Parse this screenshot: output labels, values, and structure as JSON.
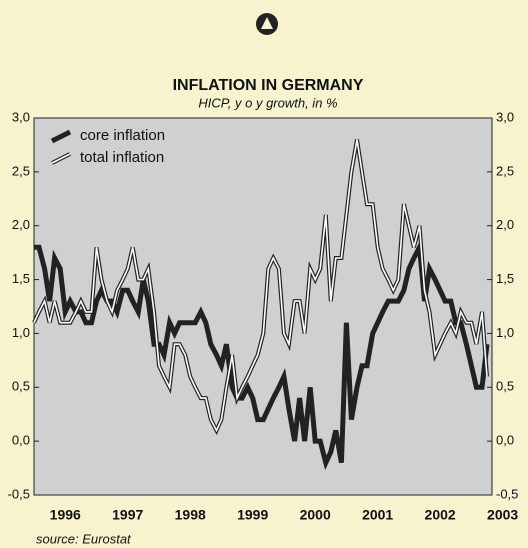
{
  "chart_data": {
    "type": "line",
    "title": "INFLATION IN GERMANY",
    "subtitle": "HICP, y o y growth, in %",
    "source": "source: Eurostat",
    "x": [
      1996.0,
      1996.08,
      1996.17,
      1996.25,
      1996.33,
      1996.42,
      1996.5,
      1996.58,
      1996.67,
      1996.75,
      1996.83,
      1996.92,
      1997.0,
      1997.08,
      1997.17,
      1997.25,
      1997.33,
      1997.42,
      1997.5,
      1997.58,
      1997.67,
      1997.75,
      1997.83,
      1997.92,
      1998.0,
      1998.08,
      1998.17,
      1998.25,
      1998.33,
      1998.42,
      1998.5,
      1998.58,
      1998.67,
      1998.75,
      1998.83,
      1998.92,
      1999.0,
      1999.08,
      1999.17,
      1999.25,
      1999.33,
      1999.42,
      1999.5,
      1999.58,
      1999.67,
      1999.75,
      1999.83,
      1999.92,
      2000.0,
      2000.08,
      2000.17,
      2000.25,
      2000.33,
      2000.42,
      2000.5,
      2000.58,
      2000.67,
      2000.75,
      2000.83,
      2000.92,
      2001.0,
      2001.08,
      2001.17,
      2001.25,
      2001.33,
      2001.42,
      2001.5,
      2001.58,
      2001.67,
      2001.75,
      2001.83,
      2001.92,
      2002.0,
      2002.08,
      2002.17,
      2002.25,
      2002.33,
      2002.42,
      2002.5,
      2002.58,
      2002.67,
      2002.75,
      2002.83,
      2002.92,
      2003.0,
      2003.08,
      2003.17,
      2003.25
    ],
    "series": [
      {
        "name": "core inflation",
        "color": "#222222",
        "style": "thick",
        "values": [
          1.8,
          1.8,
          1.6,
          1.3,
          1.7,
          1.6,
          1.2,
          1.3,
          1.2,
          1.2,
          1.1,
          1.1,
          1.3,
          1.4,
          1.3,
          1.3,
          1.2,
          1.4,
          1.4,
          1.3,
          1.2,
          1.5,
          1.3,
          0.9,
          0.9,
          0.8,
          1.1,
          1.0,
          1.1,
          1.1,
          1.1,
          1.1,
          1.2,
          1.1,
          0.9,
          0.8,
          0.7,
          0.9,
          0.5,
          0.4,
          0.4,
          0.5,
          0.4,
          0.2,
          0.2,
          0.3,
          0.4,
          0.5,
          0.6,
          0.3,
          0.0,
          0.4,
          0.0,
          0.5,
          0.0,
          0.0,
          -0.2,
          -0.1,
          0.1,
          -0.2,
          1.1,
          0.2,
          0.5,
          0.7,
          0.7,
          1.0,
          1.1,
          1.2,
          1.3,
          1.3,
          1.3,
          1.4,
          1.6,
          1.7,
          1.8,
          1.3,
          1.6,
          1.5,
          1.4,
          1.3,
          1.3,
          1.1,
          1.1,
          0.9,
          0.7,
          0.5,
          0.5,
          0.9
        ]
      },
      {
        "name": "total inflation",
        "color": "#222222",
        "style": "double",
        "values": [
          1.1,
          1.2,
          1.3,
          1.1,
          1.3,
          1.1,
          1.1,
          1.1,
          1.2,
          1.3,
          1.2,
          1.2,
          1.8,
          1.5,
          1.3,
          1.2,
          1.4,
          1.5,
          1.6,
          1.8,
          1.5,
          1.5,
          1.6,
          1.2,
          0.7,
          0.6,
          0.5,
          0.9,
          0.9,
          0.8,
          0.6,
          0.5,
          0.4,
          0.4,
          0.2,
          0.1,
          0.2,
          0.5,
          0.8,
          0.4,
          0.5,
          0.6,
          0.7,
          0.8,
          1.0,
          1.6,
          1.7,
          1.6,
          1.0,
          0.9,
          1.3,
          1.3,
          1.0,
          1.6,
          1.5,
          1.6,
          2.1,
          1.3,
          1.7,
          1.7,
          2.1,
          2.5,
          2.8,
          2.5,
          2.2,
          2.2,
          1.8,
          1.6,
          1.5,
          1.4,
          1.5,
          2.2,
          2.0,
          1.8,
          2.0,
          1.4,
          1.2,
          0.8,
          0.9,
          1.0,
          1.1,
          1.0,
          1.2,
          1.1,
          1.1,
          0.9,
          1.2,
          0.6
        ]
      }
    ],
    "xlim": [
      1996,
      2003.33
    ],
    "xticks": [
      {
        "value": 1996.5,
        "label": "1996"
      },
      {
        "value": 1997.5,
        "label": "1997"
      },
      {
        "value": 1998.5,
        "label": "1998"
      },
      {
        "value": 1999.5,
        "label": "1999"
      },
      {
        "value": 2000.5,
        "label": "2000"
      },
      {
        "value": 2001.5,
        "label": "2001"
      },
      {
        "value": 2002.5,
        "label": "2002"
      },
      {
        "value": 2003.5,
        "label": "2003"
      }
    ],
    "ylim": [
      -0.5,
      3.0
    ],
    "yticks": [
      {
        "value": 3.0,
        "label": "3,0"
      },
      {
        "value": 2.5,
        "label": "2,5"
      },
      {
        "value": 2.0,
        "label": "2,0"
      },
      {
        "value": 1.5,
        "label": "1,5"
      },
      {
        "value": 1.0,
        "label": "1,0"
      },
      {
        "value": 0.5,
        "label": "0,5"
      },
      {
        "value": 0.0,
        "label": "0,0"
      },
      {
        "value": -0.5,
        "label": "-0,5"
      }
    ],
    "grid": false,
    "legend": "top-left"
  }
}
